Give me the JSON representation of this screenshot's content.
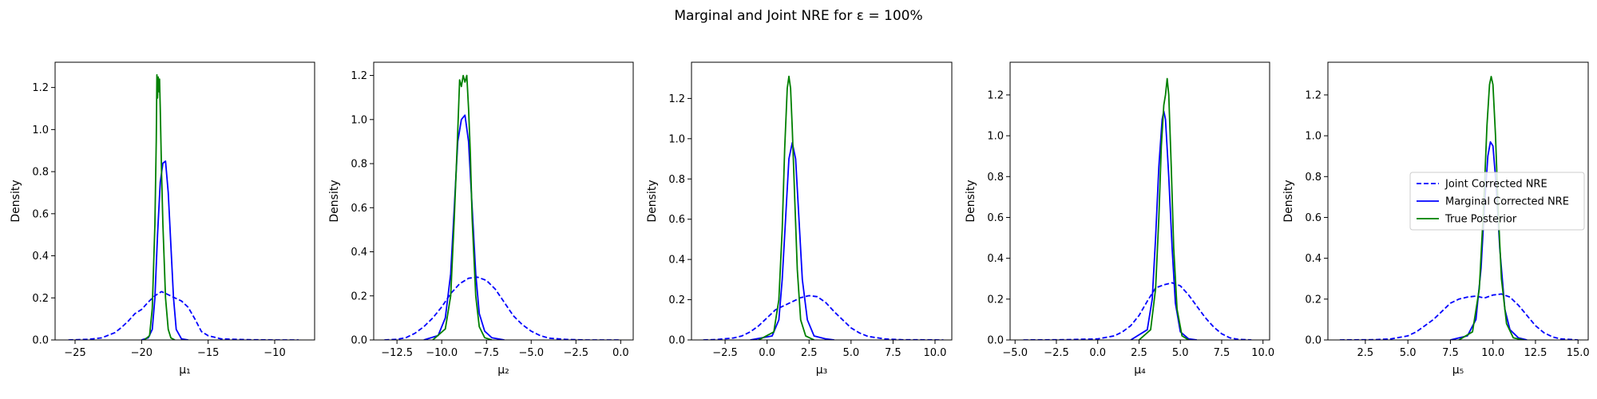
{
  "figure": {
    "title": "Marginal and Joint NRE for ε = 100%"
  },
  "legend": {
    "placement": "right",
    "entries": [
      {
        "name": "Joint Corrected NRE",
        "color": "#0000ff",
        "style": "dashed"
      },
      {
        "name": "Marginal Corrected NRE",
        "color": "#0000ff",
        "style": "solid"
      },
      {
        "name": "True Posterior",
        "color": "#008000",
        "style": "solid"
      }
    ]
  },
  "chart_data": [
    {
      "type": "line",
      "xlabel": "μ₁",
      "ylabel": "Density",
      "xlim": [
        -26.5,
        -7.0
      ],
      "ylim": [
        0,
        1.32
      ],
      "xticks": [
        -25,
        -20,
        -15,
        -10
      ],
      "xtick_labels": [
        "−25",
        "−20",
        "−15",
        "−10"
      ],
      "yticks": [
        0.0,
        0.2,
        0.4,
        0.6,
        0.8,
        1.0,
        1.2
      ],
      "ytick_labels": [
        "0.0",
        "0.2",
        "0.4",
        "0.6",
        "0.8",
        "1.0",
        "1.2"
      ],
      "series": [
        {
          "name": "Joint Corrected NRE",
          "style": "dashed",
          "color": "#0000ff",
          "x": [
            -25.5,
            -24,
            -23,
            -22,
            -21.5,
            -21,
            -20.5,
            -20,
            -19.5,
            -19,
            -18.5,
            -18,
            -17.5,
            -17,
            -16.5,
            -16,
            -15.5,
            -15,
            -14,
            -12,
            -10,
            -8.2
          ],
          "y": [
            0.0,
            0.003,
            0.01,
            0.035,
            0.06,
            0.09,
            0.125,
            0.145,
            0.18,
            0.21,
            0.23,
            0.215,
            0.2,
            0.185,
            0.155,
            0.1,
            0.04,
            0.02,
            0.005,
            0.001,
            0.0,
            0.0
          ]
        },
        {
          "name": "Marginal Corrected NRE",
          "style": "solid",
          "color": "#0000ff",
          "x": [
            -20,
            -19.5,
            -19.2,
            -19.0,
            -18.8,
            -18.6,
            -18.4,
            -18.2,
            -18.0,
            -17.8,
            -17.6,
            -17.4,
            -17.0,
            -16.5
          ],
          "y": [
            0.0,
            0.01,
            0.05,
            0.2,
            0.5,
            0.75,
            0.84,
            0.85,
            0.7,
            0.45,
            0.2,
            0.05,
            0.005,
            0.0
          ]
        },
        {
          "name": "True Posterior",
          "style": "solid",
          "color": "#008000",
          "x": [
            -19.8,
            -19.4,
            -19.2,
            -19.0,
            -18.9,
            -18.85,
            -18.8,
            -18.75,
            -18.7,
            -18.65,
            -18.6,
            -18.5,
            -18.4,
            -18.2,
            -18.0,
            -17.8,
            -17.5
          ],
          "y": [
            0.0,
            0.02,
            0.15,
            0.55,
            0.95,
            1.26,
            1.15,
            1.25,
            1.18,
            1.24,
            1.1,
            0.8,
            0.55,
            0.2,
            0.05,
            0.01,
            0.0
          ]
        }
      ]
    },
    {
      "type": "line",
      "xlabel": "μ₂",
      "ylabel": "Density",
      "xlim": [
        -13.8,
        0.7
      ],
      "ylim": [
        0,
        1.26
      ],
      "xticks": [
        -12.5,
        -10.0,
        -7.5,
        -5.0,
        -2.5,
        0.0
      ],
      "xtick_labels": [
        "−12.5",
        "−10.0",
        "−7.5",
        "−5.0",
        "−2.5",
        "0.0"
      ],
      "yticks": [
        0.0,
        0.2,
        0.4,
        0.6,
        0.8,
        1.0,
        1.2
      ],
      "ytick_labels": [
        "0.0",
        "0.2",
        "0.4",
        "0.6",
        "0.8",
        "1.0",
        "1.2"
      ],
      "series": [
        {
          "name": "Joint Corrected NRE",
          "style": "dashed",
          "color": "#0000ff",
          "x": [
            -13.2,
            -12.5,
            -12,
            -11.5,
            -11,
            -10.5,
            -10,
            -9.5,
            -9,
            -8.5,
            -8,
            -7.5,
            -7,
            -6.5,
            -6,
            -5.5,
            -5,
            -4.5,
            -4,
            -3,
            -2,
            -0.1
          ],
          "y": [
            0.0,
            0.003,
            0.01,
            0.03,
            0.06,
            0.1,
            0.15,
            0.21,
            0.255,
            0.28,
            0.285,
            0.27,
            0.23,
            0.17,
            0.11,
            0.07,
            0.04,
            0.02,
            0.008,
            0.002,
            0.0,
            0.0
          ]
        },
        {
          "name": "Marginal Corrected NRE",
          "style": "solid",
          "color": "#0000ff",
          "x": [
            -11,
            -10.2,
            -9.8,
            -9.5,
            -9.3,
            -9.1,
            -8.9,
            -8.7,
            -8.5,
            -8.3,
            -8.1,
            -7.9,
            -7.6,
            -7.2,
            -6.5
          ],
          "y": [
            0.0,
            0.02,
            0.1,
            0.3,
            0.6,
            0.9,
            1.0,
            1.02,
            0.9,
            0.6,
            0.3,
            0.12,
            0.04,
            0.01,
            0.0
          ]
        },
        {
          "name": "True Posterior",
          "style": "solid",
          "color": "#008000",
          "x": [
            -10.5,
            -9.8,
            -9.5,
            -9.3,
            -9.1,
            -9.0,
            -8.9,
            -8.8,
            -8.7,
            -8.6,
            -8.5,
            -8.4,
            -8.3,
            -8.1,
            -7.9,
            -7.6,
            -7.2
          ],
          "y": [
            0.0,
            0.05,
            0.2,
            0.55,
            0.95,
            1.18,
            1.15,
            1.2,
            1.17,
            1.2,
            1.05,
            0.85,
            0.55,
            0.2,
            0.06,
            0.01,
            0.0
          ]
        }
      ]
    },
    {
      "type": "line",
      "xlabel": "μ₃",
      "ylabel": "Density",
      "xlim": [
        -4.5,
        11.0
      ],
      "ylim": [
        0,
        1.38
      ],
      "xticks": [
        -2.5,
        0.0,
        2.5,
        5.0,
        7.5,
        10.0
      ],
      "xtick_labels": [
        "−2.5",
        "0.0",
        "2.5",
        "5.0",
        "7.5",
        "10.0"
      ],
      "yticks": [
        0.0,
        0.2,
        0.4,
        0.6,
        0.8,
        1.0,
        1.2
      ],
      "ytick_labels": [
        "0.0",
        "0.2",
        "0.4",
        "0.6",
        "0.8",
        "1.0",
        "1.2"
      ],
      "series": [
        {
          "name": "Joint Corrected NRE",
          "style": "dashed",
          "color": "#0000ff",
          "x": [
            -3.8,
            -3,
            -2,
            -1.5,
            -1,
            -0.5,
            0,
            0.5,
            1,
            1.5,
            2,
            2.5,
            3,
            3.5,
            4,
            4.5,
            5,
            5.5,
            6,
            7,
            8,
            10.5
          ],
          "y": [
            0.0,
            0.002,
            0.01,
            0.02,
            0.04,
            0.07,
            0.11,
            0.15,
            0.17,
            0.19,
            0.21,
            0.22,
            0.215,
            0.185,
            0.14,
            0.1,
            0.06,
            0.035,
            0.018,
            0.005,
            0.001,
            0.0
          ]
        },
        {
          "name": "Marginal Corrected NRE",
          "style": "solid",
          "color": "#0000ff",
          "x": [
            -1,
            0.3,
            0.7,
            0.9,
            1.1,
            1.3,
            1.5,
            1.7,
            1.9,
            2.1,
            2.4,
            2.8,
            3.5,
            4.0
          ],
          "y": [
            0.0,
            0.02,
            0.1,
            0.3,
            0.6,
            0.9,
            0.98,
            0.9,
            0.6,
            0.3,
            0.1,
            0.02,
            0.005,
            0.0
          ]
        },
        {
          "name": "True Posterior",
          "style": "solid",
          "color": "#008000",
          "x": [
            -0.5,
            0.4,
            0.7,
            0.9,
            1.05,
            1.2,
            1.3,
            1.4,
            1.5,
            1.65,
            1.8,
            2.0,
            2.3,
            2.8
          ],
          "y": [
            0.0,
            0.04,
            0.2,
            0.55,
            0.95,
            1.25,
            1.31,
            1.25,
            1.05,
            0.7,
            0.35,
            0.1,
            0.02,
            0.0
          ]
        }
      ]
    },
    {
      "type": "line",
      "xlabel": "μ₄",
      "ylabel": "Density",
      "xlim": [
        -5.3,
        10.4
      ],
      "ylim": [
        0,
        1.36
      ],
      "xticks": [
        -5.0,
        -2.5,
        0.0,
        2.5,
        5.0,
        7.5,
        10.0
      ],
      "xtick_labels": [
        "−5.0",
        "−2.5",
        "0.0",
        "2.5",
        "5.0",
        "7.5",
        "10.0"
      ],
      "yticks": [
        0.0,
        0.2,
        0.4,
        0.6,
        0.8,
        1.0,
        1.2
      ],
      "ytick_labels": [
        "0.0",
        "0.2",
        "0.4",
        "0.6",
        "0.8",
        "1.0",
        "1.2"
      ],
      "series": [
        {
          "name": "Joint Corrected NRE",
          "style": "dashed",
          "color": "#0000ff",
          "x": [
            -4.5,
            -2,
            0,
            1,
            1.5,
            2,
            2.5,
            3,
            3.5,
            4,
            4.5,
            5,
            5.5,
            6,
            6.5,
            7,
            7.5,
            8,
            8.5,
            9.3
          ],
          "y": [
            0.0,
            0.001,
            0.005,
            0.02,
            0.04,
            0.07,
            0.12,
            0.19,
            0.255,
            0.27,
            0.28,
            0.265,
            0.22,
            0.165,
            0.11,
            0.065,
            0.03,
            0.01,
            0.003,
            0.0
          ]
        },
        {
          "name": "Marginal Corrected NRE",
          "style": "solid",
          "color": "#0000ff",
          "x": [
            2.0,
            3.0,
            3.3,
            3.5,
            3.7,
            3.9,
            4.0,
            4.1,
            4.3,
            4.5,
            4.7,
            5.0,
            5.5,
            6.0
          ],
          "y": [
            0.0,
            0.05,
            0.2,
            0.5,
            0.85,
            1.08,
            1.12,
            1.08,
            0.8,
            0.45,
            0.18,
            0.04,
            0.005,
            0.0
          ]
        },
        {
          "name": "True Posterior",
          "style": "solid",
          "color": "#008000",
          "x": [
            2.5,
            3.2,
            3.5,
            3.7,
            3.85,
            4.0,
            4.1,
            4.2,
            4.3,
            4.45,
            4.6,
            4.8,
            5.1,
            5.5
          ],
          "y": [
            0.0,
            0.05,
            0.25,
            0.6,
            0.95,
            1.15,
            1.2,
            1.28,
            1.2,
            0.85,
            0.45,
            0.15,
            0.02,
            0.0
          ]
        }
      ]
    },
    {
      "type": "line",
      "xlabel": "μ₅",
      "ylabel": "Density",
      "xlim": [
        0.3,
        15.6
      ],
      "ylim": [
        0,
        1.36
      ],
      "xticks": [
        2.5,
        5.0,
        7.5,
        10.0,
        12.5,
        15.0
      ],
      "xtick_labels": [
        "2.5",
        "5.0",
        "7.5",
        "10.0",
        "12.5",
        "15.0"
      ],
      "yticks": [
        0.0,
        0.2,
        0.4,
        0.6,
        0.8,
        1.0,
        1.2
      ],
      "ytick_labels": [
        "0.0",
        "0.2",
        "0.4",
        "0.6",
        "0.8",
        "1.0",
        "1.2"
      ],
      "series": [
        {
          "name": "Joint Corrected NRE",
          "style": "dashed",
          "color": "#0000ff",
          "x": [
            1.0,
            3,
            4,
            5,
            5.5,
            6,
            6.5,
            7,
            7.5,
            8,
            8.5,
            9,
            9.5,
            10,
            10.5,
            11,
            11.5,
            12,
            12.5,
            13,
            13.5,
            14,
            15.0
          ],
          "y": [
            0.0,
            0.001,
            0.005,
            0.02,
            0.04,
            0.07,
            0.1,
            0.14,
            0.18,
            0.2,
            0.21,
            0.215,
            0.205,
            0.22,
            0.225,
            0.21,
            0.17,
            0.12,
            0.07,
            0.035,
            0.015,
            0.005,
            0.0
          ]
        },
        {
          "name": "Marginal Corrected NRE",
          "style": "solid",
          "color": "#0000ff",
          "x": [
            7.5,
            8.5,
            9.0,
            9.3,
            9.5,
            9.7,
            9.85,
            10.0,
            10.2,
            10.4,
            10.7,
            11.0,
            11.5,
            12.0
          ],
          "y": [
            0.0,
            0.02,
            0.1,
            0.35,
            0.65,
            0.9,
            0.97,
            0.95,
            0.75,
            0.45,
            0.15,
            0.05,
            0.01,
            0.0
          ]
        },
        {
          "name": "True Posterior",
          "style": "solid",
          "color": "#008000",
          "x": [
            8.0,
            8.8,
            9.2,
            9.45,
            9.65,
            9.8,
            9.9,
            10.0,
            10.15,
            10.3,
            10.5,
            10.8,
            11.2,
            11.8
          ],
          "y": [
            0.0,
            0.04,
            0.25,
            0.65,
            1.05,
            1.25,
            1.29,
            1.25,
            1.0,
            0.65,
            0.3,
            0.08,
            0.01,
            0.0
          ]
        }
      ]
    }
  ]
}
